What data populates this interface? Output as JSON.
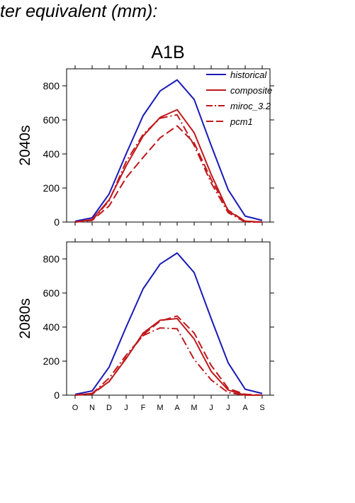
{
  "header": {
    "text": "ter equivalent (mm):"
  },
  "colors": {
    "historical": "#1a1ab8",
    "model": "#c0181c",
    "axis": "#000000"
  },
  "chart_data": {
    "type": "line",
    "title": "A1B",
    "x": [
      "O",
      "N",
      "D",
      "J",
      "F",
      "M",
      "A",
      "M",
      "J",
      "J",
      "A",
      "S"
    ],
    "ylim": [
      0,
      900
    ],
    "yticks": [
      "0",
      "200",
      "400",
      "600",
      "800"
    ],
    "legend": {
      "position": "top-right",
      "entries": [
        {
          "name": "historical",
          "style": "solid",
          "color": "historical"
        },
        {
          "name": "composite",
          "style": "solid",
          "color": "model"
        },
        {
          "name": "miroc_3.2",
          "style": "dashdot",
          "color": "model"
        },
        {
          "name": "pcm1",
          "style": "dash",
          "color": "model"
        }
      ]
    },
    "panels": [
      {
        "label": "2040s",
        "series": [
          {
            "name": "historical",
            "values": [
              5,
              25,
              165,
              400,
              625,
              770,
              835,
              720,
              450,
              190,
              35,
              10
            ]
          },
          {
            "name": "composite",
            "values": [
              0,
              15,
              130,
              330,
              505,
              615,
              660,
              525,
              280,
              65,
              5,
              0
            ]
          },
          {
            "name": "miroc_3.2",
            "values": [
              0,
              10,
              125,
              355,
              515,
              610,
              630,
              450,
              230,
              55,
              0,
              0
            ]
          },
          {
            "name": "pcm1",
            "values": [
              0,
              10,
              95,
              260,
              380,
              495,
              565,
              465,
              250,
              70,
              5,
              0
            ]
          }
        ]
      },
      {
        "label": "2080s",
        "series": [
          {
            "name": "historical",
            "values": [
              5,
              25,
              165,
              400,
              625,
              770,
              835,
              720,
              450,
              190,
              35,
              10
            ]
          },
          {
            "name": "composite",
            "values": [
              0,
              10,
              80,
              215,
              365,
              440,
              450,
              330,
              140,
              30,
              0,
              0
            ]
          },
          {
            "name": "miroc_3.2",
            "values": [
              0,
              10,
              100,
              235,
              350,
              395,
              390,
              210,
              90,
              15,
              0,
              0
            ]
          },
          {
            "name": "pcm1",
            "values": [
              0,
              5,
              80,
              220,
              355,
              435,
              465,
              365,
              175,
              40,
              5,
              0
            ]
          }
        ]
      }
    ]
  }
}
